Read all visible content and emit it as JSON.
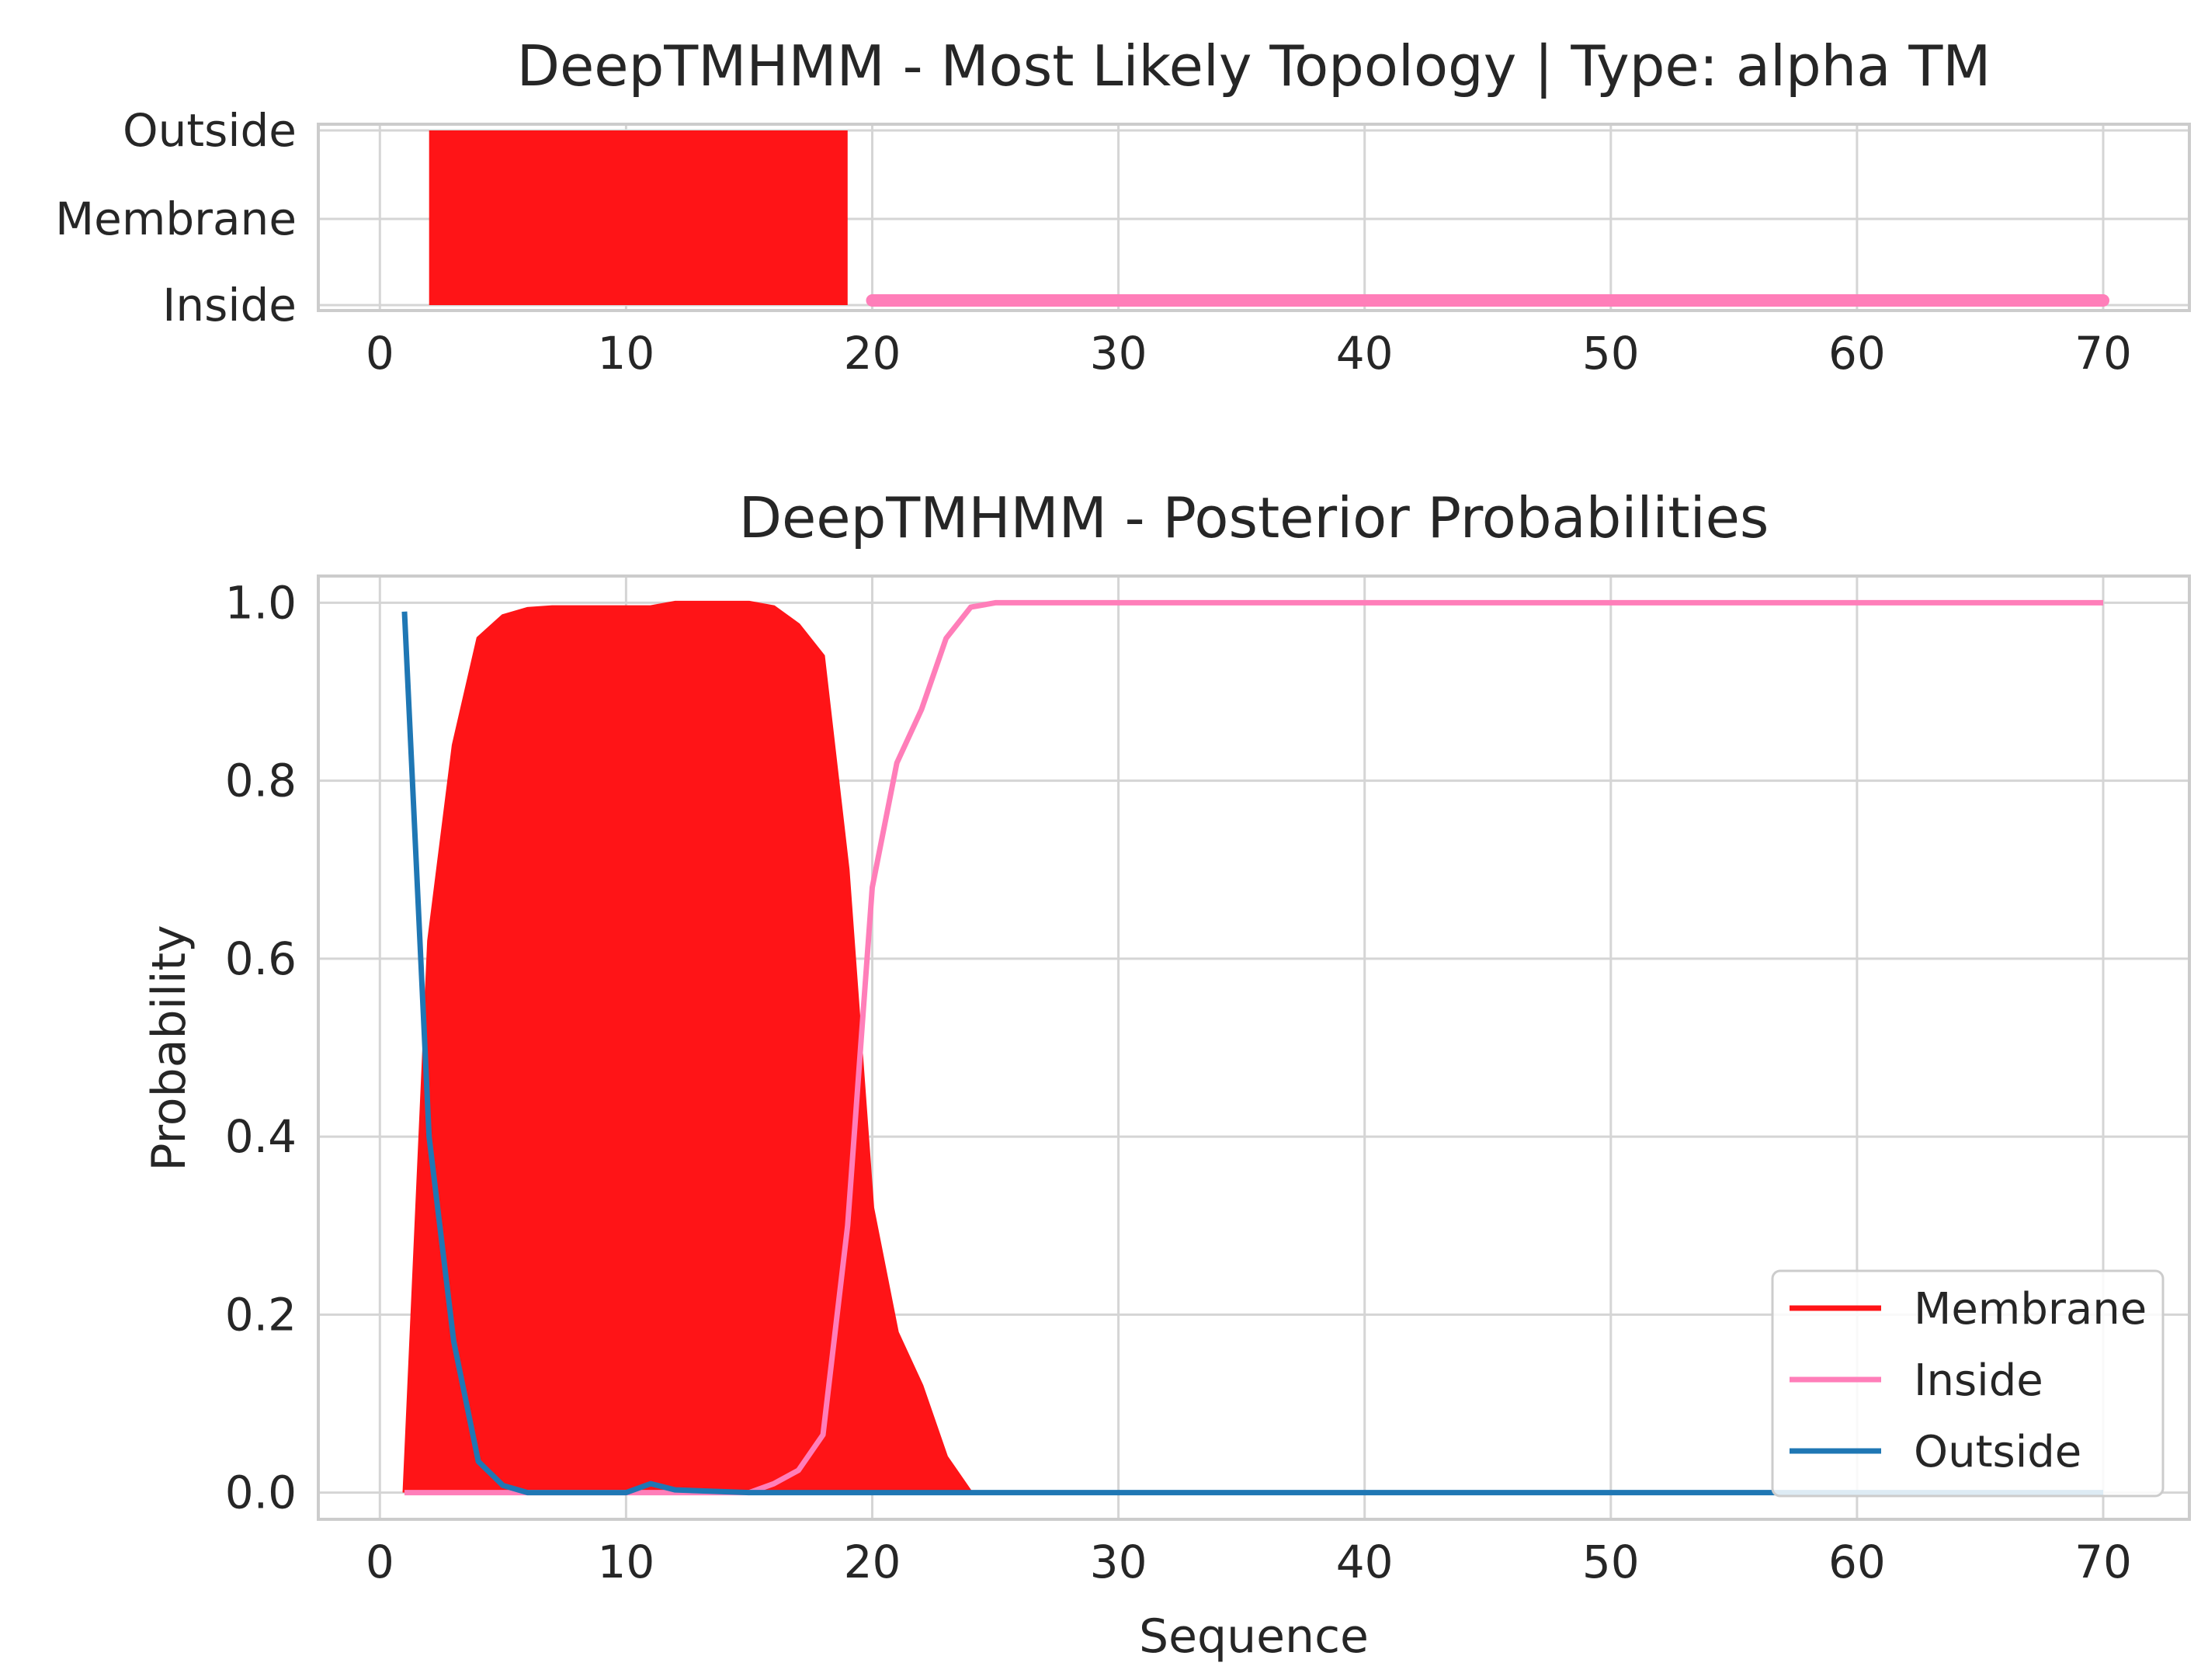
{
  "chart_data": [
    {
      "type": "area",
      "title": "DeepTMHMM - Most Likely Topology | Type: alpha TM",
      "xlabel": "",
      "ylabel": "",
      "xlim": [
        -2.5,
        73.5
      ],
      "x_ticks": [
        0,
        10,
        20,
        30,
        40,
        50,
        60,
        70
      ],
      "y_categories": [
        "Inside",
        "Membrane",
        "Outside"
      ],
      "grid": true,
      "segments": [
        {
          "name": "Membrane",
          "kind": "block",
          "x_start": 2,
          "x_end": 19,
          "y_from": "Inside",
          "y_to": "Outside",
          "color": "#ff1417"
        },
        {
          "name": "Inside",
          "kind": "line",
          "x_start": 20,
          "x_end": 70,
          "y": "Inside",
          "color": "#ff7eb9"
        }
      ]
    },
    {
      "type": "line",
      "title": "DeepTMHMM - Posterior Probabilities",
      "xlabel": "Sequence",
      "ylabel": "Probability",
      "xlim": [
        -2.5,
        73.5
      ],
      "ylim": [
        -0.03,
        1.03
      ],
      "x_ticks": [
        0,
        10,
        20,
        30,
        40,
        50,
        60,
        70
      ],
      "y_ticks": [
        "0.0",
        "0.2",
        "0.4",
        "0.6",
        "0.8",
        "1.0"
      ],
      "grid": true,
      "legend": "lower-right",
      "series": [
        {
          "name": "Membrane",
          "color": "#ff1417",
          "fill": true,
          "x": [
            1,
            2,
            3,
            4,
            5,
            6,
            7,
            8,
            9,
            10,
            11,
            12,
            13,
            14,
            15,
            16,
            17,
            18,
            19,
            20,
            21,
            22,
            23,
            24,
            25,
            70
          ],
          "y": [
            0.0,
            0.62,
            0.84,
            0.96,
            0.985,
            0.993,
            0.995,
            0.995,
            0.995,
            0.995,
            0.995,
            1.0,
            1.0,
            1.0,
            1.0,
            0.995,
            0.975,
            0.94,
            0.7,
            0.32,
            0.18,
            0.12,
            0.04,
            0.0,
            0.0,
            0.0
          ]
        },
        {
          "name": "Inside",
          "color": "#ff7eb9",
          "fill": false,
          "x": [
            1,
            15,
            16,
            17,
            18,
            19,
            20,
            21,
            22,
            23,
            24,
            25,
            70
          ],
          "y": [
            0.0,
            0.0,
            0.01,
            0.025,
            0.065,
            0.3,
            0.68,
            0.82,
            0.88,
            0.96,
            0.995,
            1.0,
            1.0
          ]
        },
        {
          "name": "Outside",
          "color": "#1f77b4",
          "fill": false,
          "x": [
            1,
            2,
            3,
            4,
            5,
            6,
            7,
            10,
            11,
            12,
            15,
            70
          ],
          "y": [
            0.99,
            0.4,
            0.17,
            0.035,
            0.008,
            0.0,
            0.0,
            0.0,
            0.01,
            0.003,
            0.0,
            0.0
          ]
        }
      ]
    }
  ]
}
